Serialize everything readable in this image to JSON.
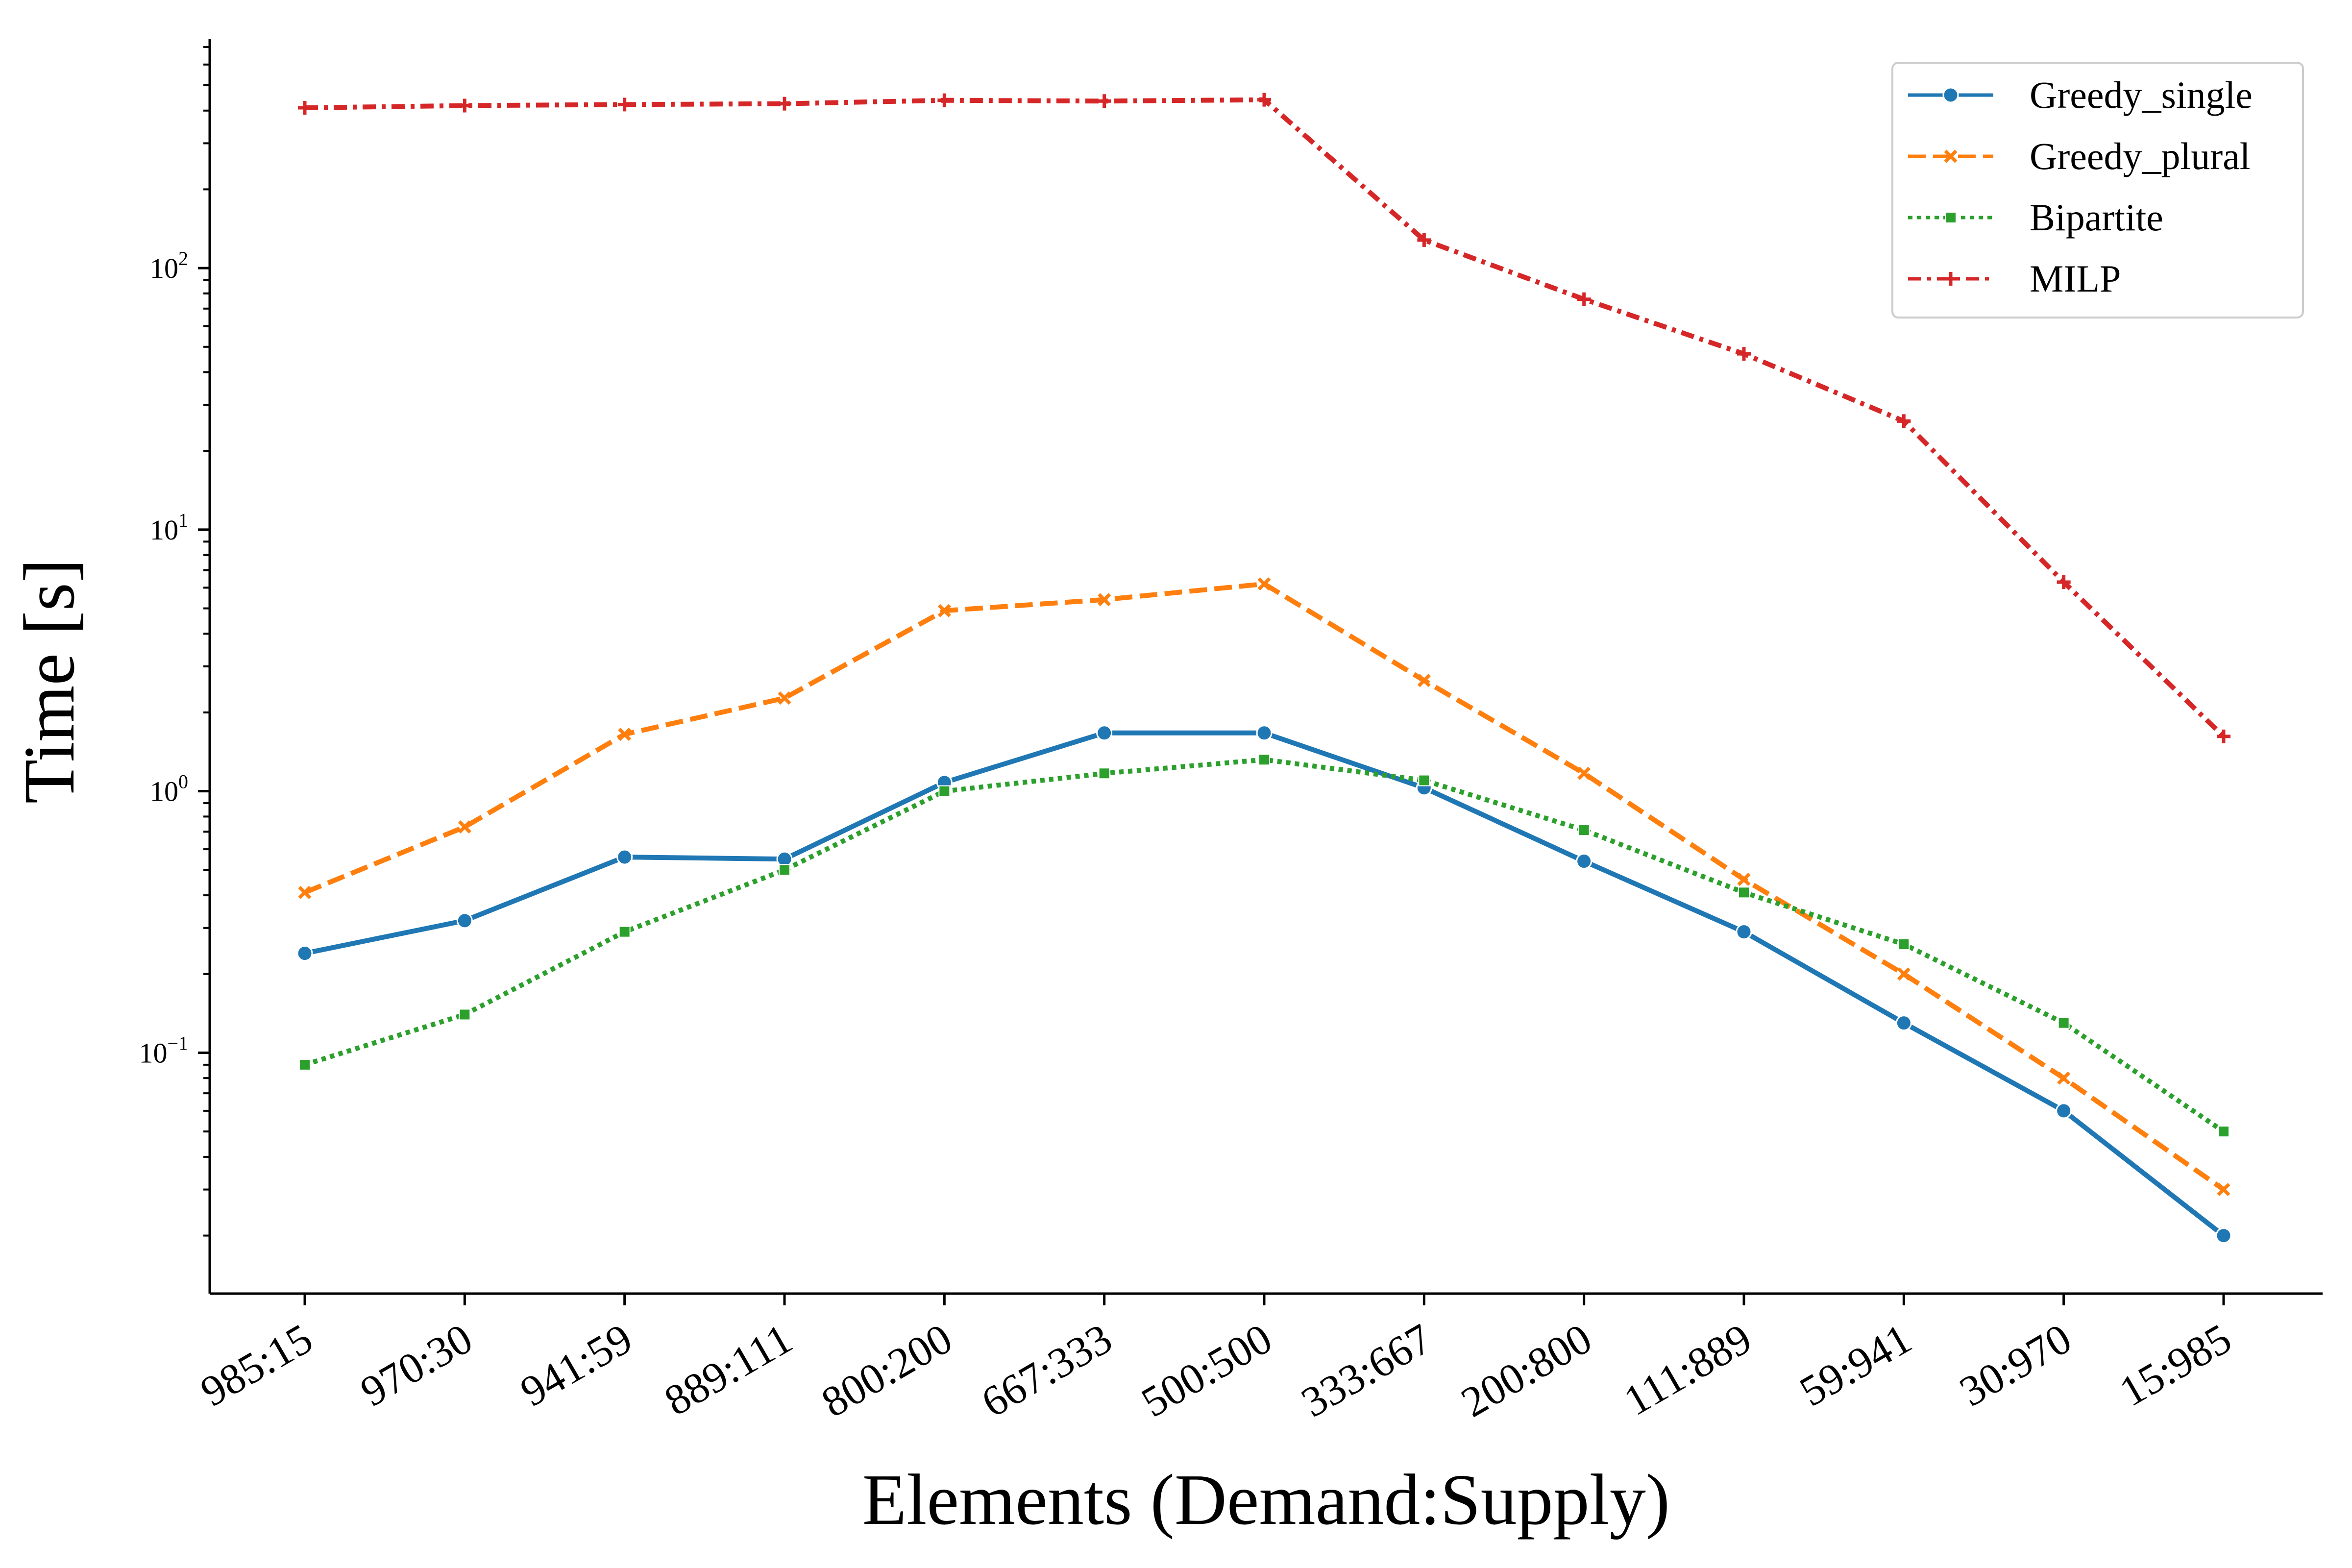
{
  "chart_data": {
    "type": "line",
    "title": "",
    "xlabel": "Elements (Demand:Supply)",
    "ylabel": "Time [s]",
    "y_scale": "log",
    "ylim": [
      0.012,
      750
    ],
    "grid": false,
    "legend_position": "top-right",
    "categories": [
      "985:15",
      "970:30",
      "941:59",
      "889:111",
      "800:200",
      "667:333",
      "500:500",
      "333:667",
      "200:800",
      "111:889",
      "59:941",
      "30:970",
      "15:985"
    ],
    "y_ticks": [
      {
        "value": 0.1,
        "base": "10",
        "exp": "−1"
      },
      {
        "value": 1,
        "base": "10",
        "exp": "0"
      },
      {
        "value": 10,
        "base": "10",
        "exp": "1"
      },
      {
        "value": 100,
        "base": "10",
        "exp": "2"
      }
    ],
    "series": [
      {
        "name": "Greedy_single",
        "color": "#1f77b4",
        "dash": "solid",
        "marker": "circle",
        "values": [
          0.24,
          0.32,
          0.56,
          0.55,
          1.08,
          1.67,
          1.67,
          1.03,
          0.54,
          0.29,
          0.13,
          0.06,
          0.02
        ]
      },
      {
        "name": "Greedy_plural",
        "color": "#ff7f0e",
        "dash": "dashed",
        "marker": "x",
        "values": [
          0.41,
          0.73,
          1.65,
          2.27,
          4.9,
          5.4,
          6.2,
          2.65,
          1.17,
          0.46,
          0.2,
          0.08,
          0.03
        ]
      },
      {
        "name": "Bipartite",
        "color": "#2ca02c",
        "dash": "dotted",
        "marker": "square",
        "values": [
          0.09,
          0.14,
          0.29,
          0.5,
          1.0,
          1.17,
          1.32,
          1.1,
          0.71,
          0.41,
          0.26,
          0.13,
          0.05
        ]
      },
      {
        "name": "MILP",
        "color": "#d62728",
        "dash": "dashdot",
        "marker": "plus",
        "values": [
          410,
          418,
          422,
          425,
          438,
          435,
          440,
          128,
          76,
          47,
          26,
          6.3,
          1.62
        ]
      }
    ]
  }
}
